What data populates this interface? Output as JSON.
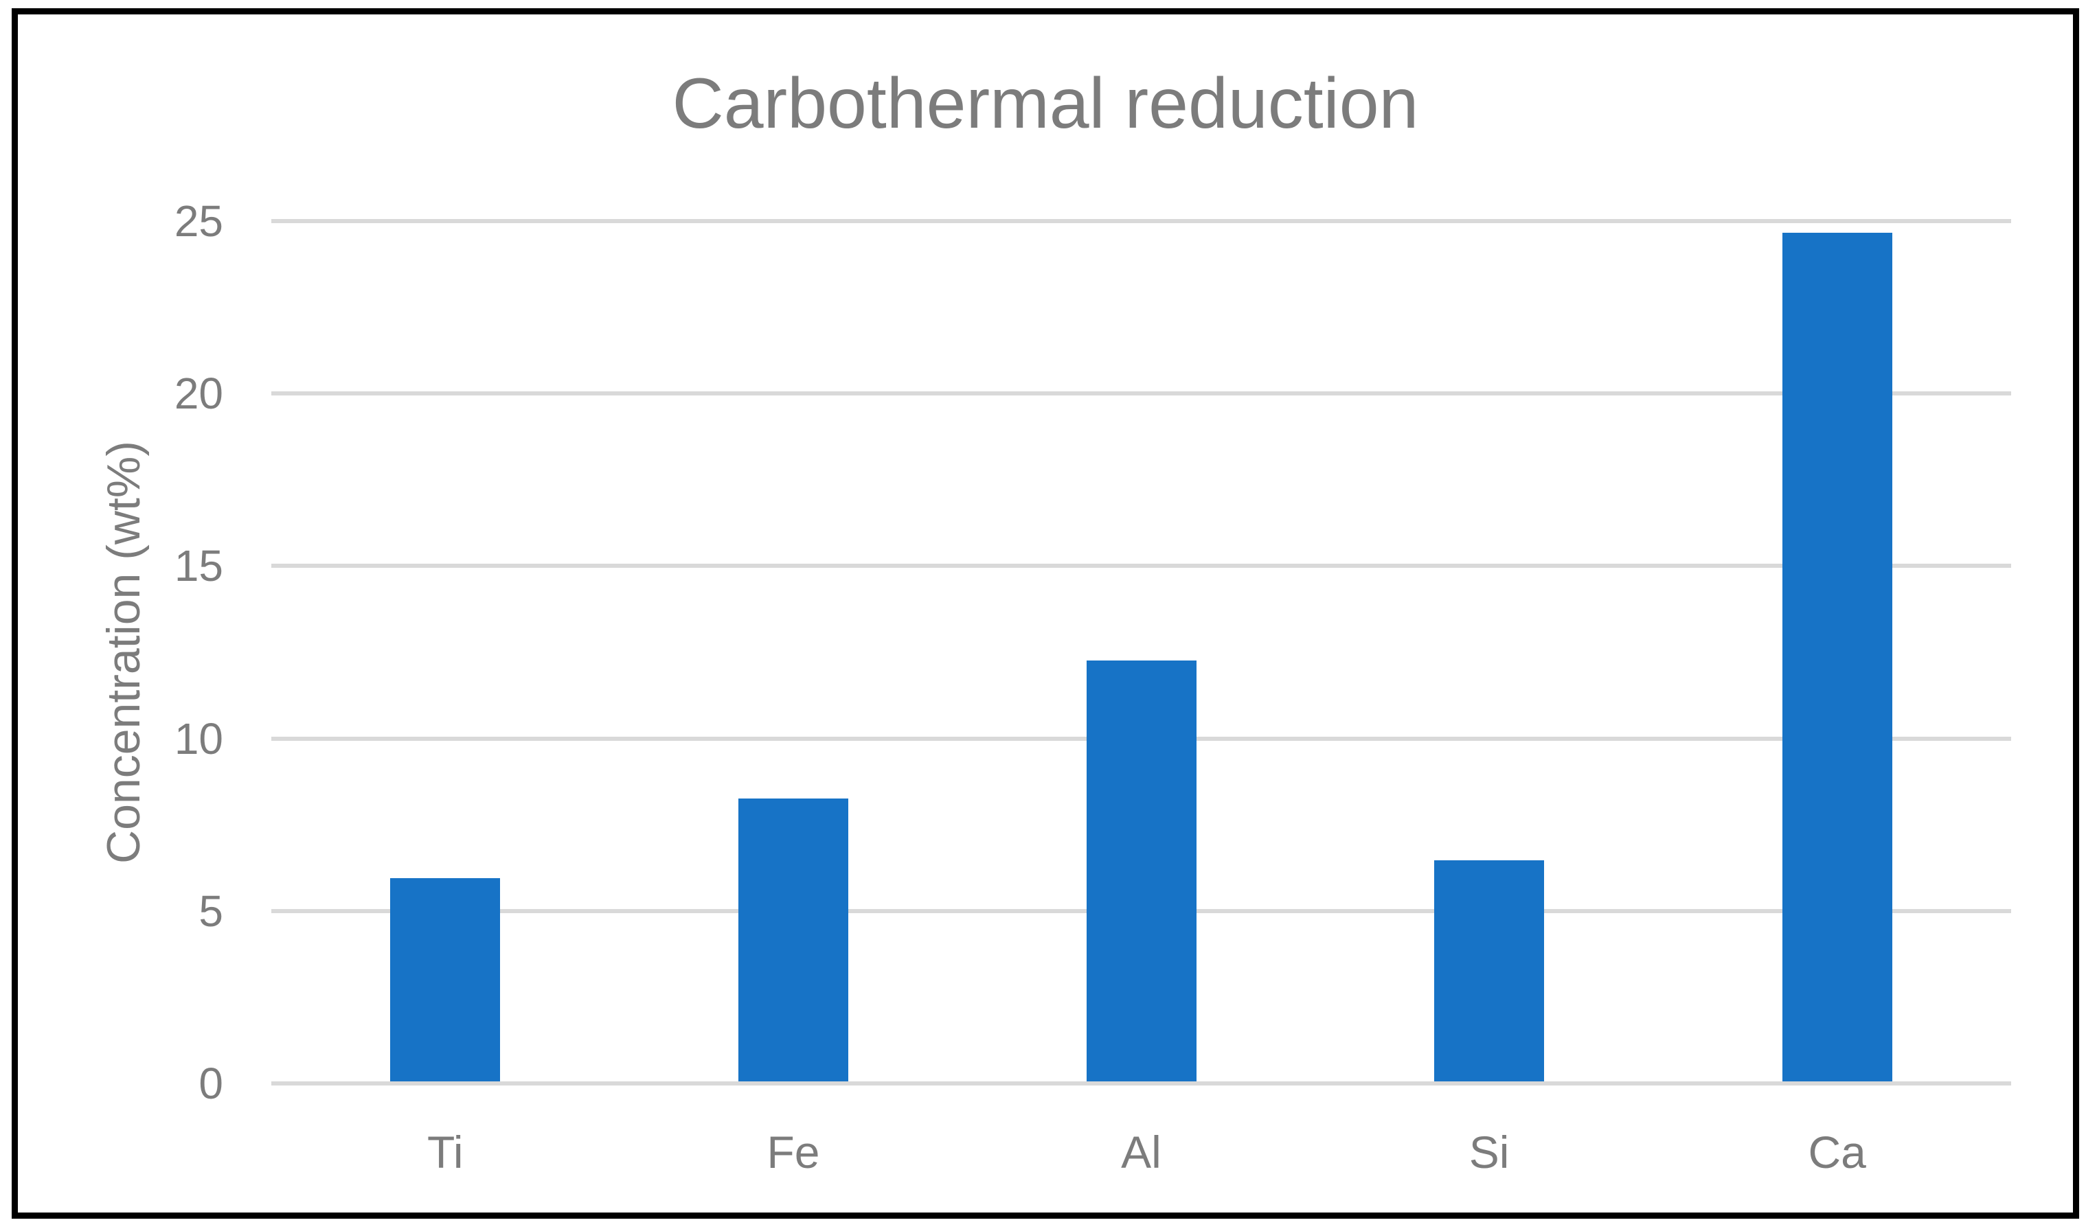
{
  "chart_data": {
    "type": "bar",
    "title": "Carbothermal reduction",
    "ylabel": "Concentration (wt%)",
    "xlabel": "",
    "categories": [
      "Ti",
      "Fe",
      "Al",
      "Si",
      "Ca"
    ],
    "values": [
      5.9,
      8.2,
      12.2,
      6.4,
      24.6
    ],
    "ylim": [
      0,
      25
    ],
    "yticks": [
      0,
      5,
      10,
      15,
      20,
      25
    ],
    "ytick_labels": [
      "0",
      "5",
      "10",
      "15",
      "20",
      "25"
    ],
    "grid": "horizontal",
    "legend_position": "none",
    "colors": {
      "bar": "#1773C6",
      "gridline": "#D9D9D9",
      "text": "#7C7C7C",
      "frame": "#000000",
      "background": "#FFFFFF"
    }
  }
}
